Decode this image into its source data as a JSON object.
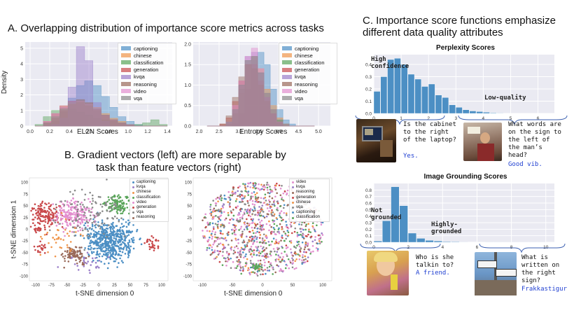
{
  "panel_a": {
    "title": "A. Overlapping distribution of importance score metrics across tasks",
    "y_label": "Density",
    "legend": [
      "captioning",
      "chinese",
      "classification",
      "generation",
      "kvqa",
      "reasoning",
      "video",
      "vqa"
    ],
    "legend_colors": [
      "#4c8fc4",
      "#f0954a",
      "#5aa55a",
      "#c9484a",
      "#9b7fc9",
      "#9a6a5a",
      "#e38fcf",
      "#8a8a8a"
    ]
  },
  "panel_b": {
    "title_line1": "B. Gradient vectors (left) are more separable by",
    "title_line2": "task than feature vectors (right)",
    "left_legend": [
      "captioning",
      "kvqa",
      "chinese",
      "classification",
      "video",
      "generation",
      "vqa",
      "reasoning"
    ],
    "right_legend": [
      "video",
      "kvqa",
      "reasoning",
      "generation",
      "chinese",
      "vqa",
      "captioning",
      "classification"
    ]
  },
  "panel_c": {
    "title_line1": "C. Importance score functions emphasize",
    "title_line2": "different data quality attributes",
    "perplexity": {
      "title": "Perplexity Scores",
      "ann_high_1": "High",
      "ann_high_2": "confidence",
      "ann_low": "Low-quality",
      "example1": {
        "q1": "Is the cabinet",
        "q2": "to the right",
        "q3": "of the laptop?",
        "a": "Yes."
      },
      "example2": {
        "q1": "What words are",
        "q2": "on the sign to",
        "q3": "the left of",
        "q4": "the man’s",
        "q5": "head?",
        "a": "Good vib."
      }
    },
    "grounding": {
      "title": "Image Grounding Scores",
      "ann_not_1": "Not",
      "ann_not_2": "grounded",
      "ann_high_1": "Highly-",
      "ann_high_2": "grounded",
      "example1": {
        "q1": "Who is she",
        "q2": "talkin to?",
        "a": "A friend."
      },
      "example2": {
        "q1": "What is",
        "q2": "written on",
        "q3": "the right",
        "q4": "sign?",
        "a": "Frakkastigur"
      }
    }
  },
  "chart_data": [
    {
      "type": "area",
      "title": "",
      "xlabel": "EL2N Scores",
      "ylabel": "Density",
      "xlim": [
        -0.05,
        1.45
      ],
      "ylim": [
        0,
        5.4
      ],
      "x_ticks": [
        "0.0",
        "0.2",
        "0.4",
        "0.6",
        "0.8",
        "1.0",
        "1.2",
        "1.4"
      ],
      "y_ticks": [
        "0",
        "1",
        "2",
        "3",
        "4",
        "5"
      ],
      "series": [
        {
          "name": "captioning",
          "values": [
            0,
            0.1,
            0.3,
            0.9,
            1.8,
            2.6,
            2.9,
            2.6,
            1.9,
            1.2,
            0.6,
            0.3,
            0.1,
            0,
            0,
            0
          ]
        },
        {
          "name": "chinese",
          "values": [
            0,
            0.2,
            0.5,
            1.0,
            1.4,
            1.6,
            1.5,
            1.2,
            0.8,
            0.5,
            0.3,
            0.1,
            0,
            0,
            0,
            0
          ]
        },
        {
          "name": "classification",
          "values": [
            0.1,
            0.6,
            1.0,
            1.2,
            1.1,
            0.9,
            0.7,
            0.5,
            0.4,
            0.3,
            0.2,
            0.1,
            0.1,
            0.2,
            0.4,
            0.1
          ]
        },
        {
          "name": "generation",
          "values": [
            0,
            0.3,
            0.8,
            1.3,
            1.6,
            1.7,
            1.5,
            1.1,
            0.7,
            0.4,
            0.2,
            0.1,
            0,
            0,
            0,
            0
          ]
        },
        {
          "name": "kvqa",
          "values": [
            0,
            0,
            0.1,
            0.5,
            2.5,
            5.1,
            4.2,
            1.5,
            0.3,
            0,
            0,
            0,
            0,
            0,
            0,
            0
          ]
        },
        {
          "name": "reasoning",
          "values": [
            0,
            0.2,
            0.5,
            1.0,
            1.4,
            1.5,
            1.3,
            1.0,
            0.7,
            0.4,
            0.2,
            0.1,
            0,
            0,
            0,
            0
          ]
        },
        {
          "name": "video",
          "values": [
            0,
            0.3,
            0.8,
            1.2,
            1.5,
            1.6,
            1.4,
            1.1,
            0.7,
            0.4,
            0.2,
            0.1,
            0,
            0,
            0,
            0
          ]
        },
        {
          "name": "vqa",
          "values": [
            0,
            0.2,
            0.6,
            1.1,
            1.5,
            1.7,
            1.5,
            1.1,
            0.7,
            0.4,
            0.2,
            0.1,
            0,
            0,
            0,
            0
          ]
        }
      ]
    },
    {
      "type": "area",
      "title": "",
      "xlabel": "Entropy Scores",
      "ylabel": "",
      "xlim": [
        1.85,
        5.3
      ],
      "ylim": [
        0,
        2.05
      ],
      "x_ticks": [
        "2.0",
        "2.5",
        "3.0",
        "3.5",
        "4.0",
        "4.5",
        "5.0"
      ],
      "y_ticks": [
        "0.0",
        "0.5",
        "1.0",
        "1.5",
        "2.0"
      ],
      "series": [
        {
          "name": "captioning",
          "values": [
            0,
            0,
            0,
            0,
            0.05,
            0.3,
            0.9,
            1.6,
            1.8,
            1.5,
            0.9,
            0.4,
            0.15,
            0.05,
            0,
            0,
            0
          ]
        },
        {
          "name": "chinese",
          "values": [
            0,
            0,
            0,
            0.05,
            0.3,
            0.8,
            1.5,
            1.7,
            1.4,
            0.9,
            0.5,
            0.2,
            0.05,
            0,
            0,
            0,
            0
          ]
        },
        {
          "name": "classification",
          "values": [
            0,
            0,
            0,
            0.05,
            0.3,
            0.9,
            1.6,
            1.7,
            1.3,
            0.8,
            0.4,
            0.15,
            0.05,
            0,
            0,
            0,
            0
          ]
        },
        {
          "name": "generation",
          "values": [
            0,
            0,
            0.05,
            0.2,
            0.6,
            1.1,
            1.5,
            1.5,
            1.1,
            0.7,
            0.3,
            0.1,
            0,
            0,
            0,
            0,
            0
          ]
        },
        {
          "name": "kvqa",
          "values": [
            0,
            0,
            0,
            0.1,
            0.4,
            1.0,
            1.7,
            1.8,
            1.3,
            0.7,
            0.3,
            0.1,
            0,
            0,
            0,
            0,
            0
          ]
        },
        {
          "name": "reasoning",
          "values": [
            0,
            0,
            0.05,
            0.25,
            0.7,
            1.2,
            1.5,
            1.4,
            1.0,
            0.6,
            0.3,
            0.1,
            0,
            0,
            0,
            0,
            0
          ]
        },
        {
          "name": "video",
          "values": [
            0,
            0,
            0,
            0.1,
            0.5,
            1.1,
            1.7,
            1.9,
            1.4,
            0.8,
            0.4,
            0.1,
            0.05,
            0,
            0,
            0,
            0
          ]
        },
        {
          "name": "vqa",
          "values": [
            0,
            0,
            0,
            0.1,
            0.4,
            1.0,
            1.6,
            1.7,
            1.3,
            0.8,
            0.4,
            0.15,
            0.05,
            0,
            0,
            0,
            0
          ]
        }
      ]
    },
    {
      "type": "scatter",
      "title": "",
      "xlabel": "t-SNE dimension 0",
      "ylabel": "t-SNE dimension 1",
      "xlim": [
        -110,
        110
      ],
      "ylim": [
        -110,
        110
      ],
      "x_ticks": [
        "-100",
        "-75",
        "-50",
        "-25",
        "0",
        "25",
        "50",
        "75",
        "100"
      ],
      "y_ticks": [
        "100",
        "75",
        "50",
        "25",
        "0",
        "-25",
        "-50",
        "-75",
        "-100"
      ],
      "series": [
        {
          "name": "captioning",
          "center": [
            20,
            -20
          ],
          "spread": 40
        },
        {
          "name": "kvqa",
          "center": [
            -30,
            -60
          ],
          "spread": 20
        },
        {
          "name": "chinese",
          "center": [
            20,
            50
          ],
          "spread": 20
        },
        {
          "name": "classification",
          "center": [
            -10,
            0
          ],
          "spread": 70
        },
        {
          "name": "video",
          "center": [
            -50,
            20
          ],
          "spread": 30
        },
        {
          "name": "generation",
          "center": [
            -70,
            60
          ],
          "spread": 25
        },
        {
          "name": "vqa",
          "center": [
            -40,
            -40
          ],
          "spread": 25
        },
        {
          "name": "reasoning",
          "center": [
            -60,
            -40
          ],
          "spread": 20
        }
      ]
    },
    {
      "type": "scatter",
      "title": "",
      "xlabel": "t-SNE dimension 0",
      "ylabel": "",
      "xlim": [
        -115,
        115
      ],
      "ylim": [
        -110,
        110
      ],
      "x_ticks": [
        "-100",
        "-50",
        "0",
        "50",
        "100"
      ],
      "y_ticks": [
        "100",
        "75",
        "50",
        "25",
        "0",
        "-25",
        "-50",
        "-75",
        "-100"
      ]
    },
    {
      "type": "bar",
      "title": "Perplexity Scores",
      "xlabel": "",
      "ylabel": "",
      "x_ticks": [
        "0",
        "1",
        "2",
        "3",
        "4",
        "5",
        "6"
      ],
      "y_ticks": [
        "0.0",
        "0.1",
        "0.2",
        "0.3",
        "0.4"
      ],
      "ylim": [
        0,
        0.48
      ],
      "bin_width": 0.25,
      "bin_start": 0,
      "values": [
        0.18,
        0.3,
        0.44,
        0.45,
        0.4,
        0.32,
        0.28,
        0.22,
        0.24,
        0.15,
        0.13,
        0.07,
        0.05,
        0.03,
        0.02,
        0.015,
        0.01,
        0.005,
        0.003
      ]
    },
    {
      "type": "bar",
      "title": "Image Grounding Scores",
      "xlabel": "",
      "ylabel": "",
      "x_ticks": [
        "0",
        "2",
        "4",
        "6",
        "8",
        "10"
      ],
      "y_ticks": [
        "0.0",
        "0.1",
        "0.2",
        "0.3",
        "0.4",
        "0.5",
        "0.6",
        "0.7",
        "0.8"
      ],
      "ylim": [
        0,
        0.9
      ],
      "bin_width": 0.5,
      "bin_start": 0,
      "values": [
        0.02,
        0.33,
        0.85,
        0.56,
        0.14,
        0.06,
        0.03,
        0.02,
        0.01,
        0.008,
        0.005,
        0.004,
        0.003,
        0.002,
        0.002,
        0.001,
        0.001,
        0.001,
        0.001,
        0.001
      ]
    }
  ]
}
